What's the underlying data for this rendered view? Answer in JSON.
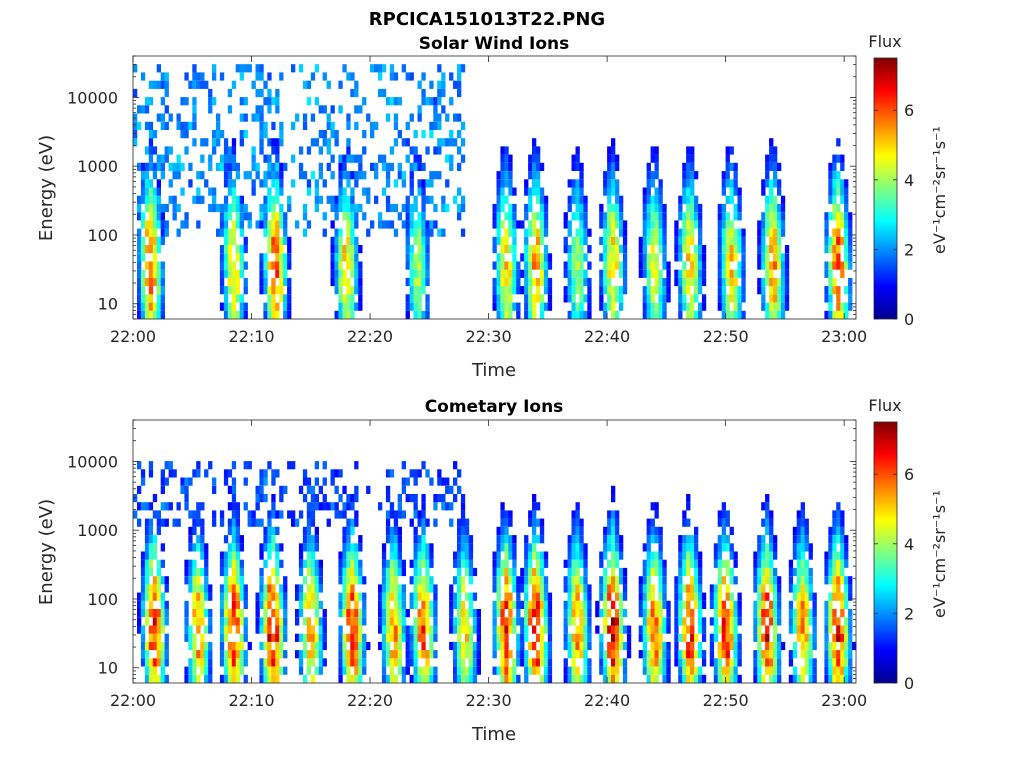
{
  "figure": {
    "title": "RPCICA151013T22.PNG"
  },
  "chart_data": [
    {
      "type": "heatmap",
      "title": "Solar Wind Ions",
      "xlabel": "Time",
      "ylabel": "Energy (eV)",
      "x_ticks": [
        "22:00",
        "22:10",
        "22:20",
        "22:30",
        "22:40",
        "22:50",
        "23:00"
      ],
      "x_range": [
        "22:00",
        "23:01"
      ],
      "y_scale": "log",
      "y_ticks": [
        "10",
        "100",
        "1000",
        "10000"
      ],
      "ylim": [
        6,
        40000
      ],
      "colorbar": {
        "label": "Flux",
        "unit": "eV⁻¹cm⁻²sr⁻¹s⁻¹",
        "range": [
          0,
          7.5
        ],
        "ticks": [
          "0",
          "2",
          "4",
          "6"
        ],
        "colormap": "jet"
      },
      "bursts": [
        {
          "t": 1.5,
          "peak": 6.0
        },
        {
          "t": 8.5,
          "peak": 5.0
        },
        {
          "t": 12.0,
          "peak": 6.0
        },
        {
          "t": 18.0,
          "peak": 5.0
        },
        {
          "t": 24.0,
          "peak": 4.0
        },
        {
          "t": 31.5,
          "peak": 5.0
        },
        {
          "t": 34.0,
          "peak": 5.5
        },
        {
          "t": 37.5,
          "peak": 4.0
        },
        {
          "t": 40.5,
          "peak": 5.0
        },
        {
          "t": 44.0,
          "peak": 4.5
        },
        {
          "t": 47.0,
          "peak": 5.0
        },
        {
          "t": 50.5,
          "peak": 5.0
        },
        {
          "t": 54.0,
          "peak": 5.5
        },
        {
          "t": 59.5,
          "peak": 6.0
        }
      ],
      "high_energy_scatter": {
        "t_range": [
          0,
          28
        ],
        "e_range": [
          100,
          30000
        ],
        "level": 1.5
      }
    },
    {
      "type": "heatmap",
      "title": "Cometary Ions",
      "xlabel": "Time",
      "ylabel": "Energy (eV)",
      "x_ticks": [
        "22:00",
        "22:10",
        "22:20",
        "22:30",
        "22:40",
        "22:50",
        "23:00"
      ],
      "x_range": [
        "22:00",
        "23:01"
      ],
      "y_scale": "log",
      "y_ticks": [
        "10",
        "100",
        "1000",
        "10000"
      ],
      "ylim": [
        6,
        40000
      ],
      "colorbar": {
        "label": "Flux",
        "unit": "eV⁻¹cm⁻²sr⁻¹s⁻¹",
        "range": [
          0,
          7.5
        ],
        "ticks": [
          "0",
          "2",
          "4",
          "6"
        ],
        "colormap": "jet"
      },
      "bursts": [
        {
          "t": 1.8,
          "peak": 6.5
        },
        {
          "t": 5.5,
          "peak": 5.5
        },
        {
          "t": 8.5,
          "peak": 6.5
        },
        {
          "t": 11.8,
          "peak": 7.0
        },
        {
          "t": 15.0,
          "peak": 5.5
        },
        {
          "t": 18.5,
          "peak": 6.5
        },
        {
          "t": 22.0,
          "peak": 5.5
        },
        {
          "t": 24.5,
          "peak": 6.0
        },
        {
          "t": 28.0,
          "peak": 5.0
        },
        {
          "t": 31.5,
          "peak": 6.5
        },
        {
          "t": 34.0,
          "peak": 7.0
        },
        {
          "t": 37.5,
          "peak": 5.5
        },
        {
          "t": 40.5,
          "peak": 7.0
        },
        {
          "t": 44.0,
          "peak": 6.0
        },
        {
          "t": 47.0,
          "peak": 6.5
        },
        {
          "t": 50.0,
          "peak": 6.5
        },
        {
          "t": 53.5,
          "peak": 6.5
        },
        {
          "t": 56.5,
          "peak": 5.5
        },
        {
          "t": 59.5,
          "peak": 6.5
        }
      ],
      "high_energy_scatter": {
        "t_range": [
          0,
          28
        ],
        "e_range": [
          1000,
          10000
        ],
        "level": 1.0
      }
    }
  ]
}
